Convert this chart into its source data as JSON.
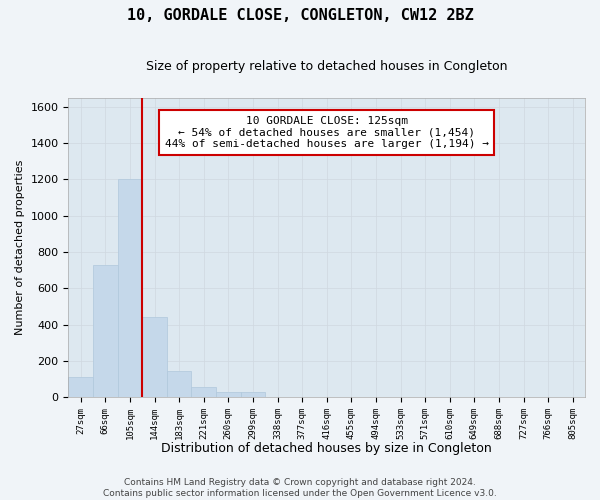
{
  "title_line1": "10, GORDALE CLOSE, CONGLETON, CW12 2BZ",
  "title_line2": "Size of property relative to detached houses in Congleton",
  "xlabel": "Distribution of detached houses by size in Congleton",
  "ylabel": "Number of detached properties",
  "bar_labels": [
    "27sqm",
    "66sqm",
    "105sqm",
    "144sqm",
    "183sqm",
    "221sqm",
    "260sqm",
    "299sqm",
    "338sqm",
    "377sqm",
    "416sqm",
    "455sqm",
    "494sqm",
    "533sqm",
    "571sqm",
    "610sqm",
    "649sqm",
    "688sqm",
    "727sqm",
    "766sqm",
    "805sqm"
  ],
  "bar_values": [
    110,
    730,
    1200,
    440,
    145,
    57,
    30,
    28,
    0,
    0,
    0,
    0,
    0,
    0,
    0,
    0,
    0,
    0,
    0,
    0,
    0
  ],
  "bar_color": "#c5d8ea",
  "bar_edge_color": "#b0c8dc",
  "vline_x": 3.0,
  "vline_color": "#cc0000",
  "annotation_text": "10 GORDALE CLOSE: 125sqm\n← 54% of detached houses are smaller (1,454)\n44% of semi-detached houses are larger (1,194) →",
  "annotation_box_color": "#ffffff",
  "annotation_box_edge_color": "#cc0000",
  "ylim": [
    0,
    1650
  ],
  "yticks": [
    0,
    200,
    400,
    600,
    800,
    1000,
    1200,
    1400,
    1600
  ],
  "grid_color": "#d0d8e0",
  "background_color": "#dde8f0",
  "fig_background_color": "#f0f4f8",
  "footer_line1": "Contains HM Land Registry data © Crown copyright and database right 2024.",
  "footer_line2": "Contains public sector information licensed under the Open Government Licence v3.0.",
  "title1_fontsize": 11,
  "title2_fontsize": 9,
  "ylabel_fontsize": 8,
  "xlabel_fontsize": 9,
  "footer_fontsize": 6.5,
  "annot_fontsize": 8
}
